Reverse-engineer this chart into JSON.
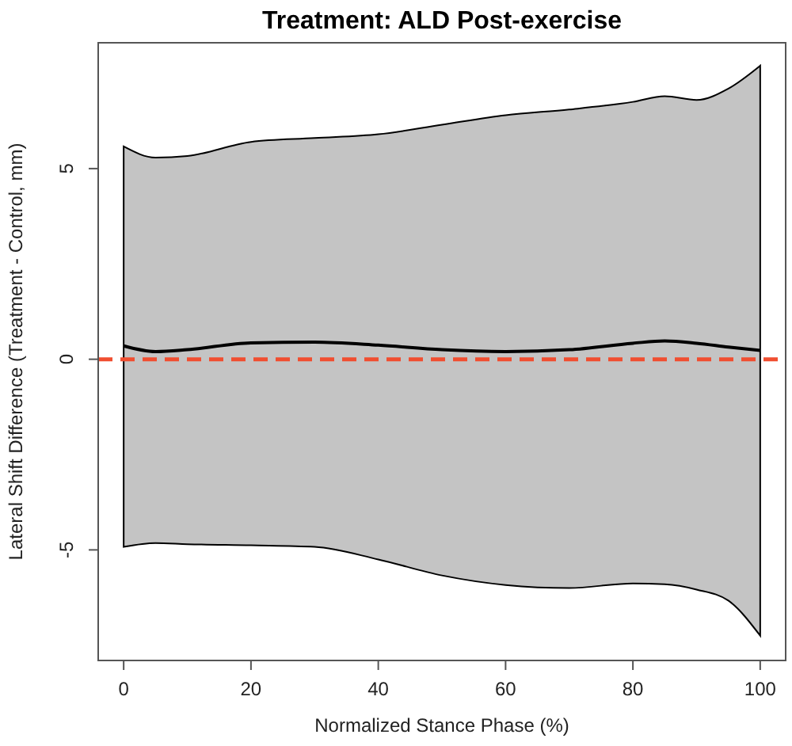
{
  "chart_data": {
    "type": "line",
    "title": "Treatment: ALD Post-exercise",
    "xlabel": "Normalized Stance Phase (%)",
    "ylabel": "Lateral Shift Difference (Treatment - Control, mm)",
    "xlim": [
      -4,
      104
    ],
    "xticks": [
      0,
      20,
      40,
      60,
      80,
      100
    ],
    "ylim": [
      -7.9,
      8.3
    ],
    "yticks": [
      -5,
      0,
      5
    ],
    "grid": false,
    "marker": "none",
    "line_style": "solid",
    "series": [
      {
        "color": "#000000",
        "x": [
          0,
          5,
          10,
          20,
          30,
          40,
          50,
          60,
          70,
          80,
          85,
          90,
          95,
          100
        ],
        "values": [
          0.35,
          0.2,
          0.25,
          0.43,
          0.45,
          0.37,
          0.25,
          0.2,
          0.25,
          0.42,
          0.48,
          0.42,
          0.32,
          0.23
        ],
        "upper": [
          5.58,
          5.29,
          5.33,
          5.7,
          5.8,
          5.9,
          6.15,
          6.4,
          6.55,
          6.75,
          6.9,
          6.8,
          7.1,
          7.7
        ],
        "lower": [
          -4.92,
          -4.82,
          -4.85,
          -4.88,
          -4.92,
          -5.25,
          -5.67,
          -5.92,
          -6.0,
          -5.88,
          -5.9,
          -6.04,
          -6.33,
          -7.25
        ]
      }
    ],
    "ref_lines": [
      {
        "axis": "y",
        "value": 0,
        "color": "#f04e30",
        "line_style": "dashed"
      }
    ]
  }
}
